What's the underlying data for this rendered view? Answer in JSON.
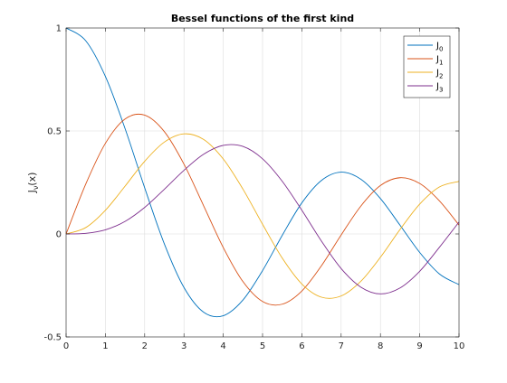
{
  "chart_data": {
    "type": "line",
    "title": "Bessel functions of the first kind",
    "xlabel": "",
    "ylabel_base": "J",
    "ylabel_sub": "ν",
    "ylabel_suffix": "(x)",
    "xlim": [
      0,
      10
    ],
    "ylim": [
      -0.5,
      1
    ],
    "xticks": [
      0,
      1,
      2,
      3,
      4,
      5,
      6,
      7,
      8,
      9,
      10
    ],
    "xtick_labels": [
      "0",
      "1",
      "2",
      "3",
      "4",
      "5",
      "6",
      "7",
      "8",
      "9",
      "10"
    ],
    "yticks": [
      -0.5,
      0,
      0.5,
      1
    ],
    "ytick_labels": [
      "-0.5",
      "0",
      "0.5",
      "1"
    ],
    "grid": true,
    "legend_position": "top-right",
    "x": [
      0,
      0.5,
      1,
      1.5,
      2,
      2.5,
      3,
      3.5,
      4,
      4.5,
      5,
      5.5,
      6,
      6.5,
      7,
      7.5,
      8,
      8.5,
      9,
      9.5,
      10
    ],
    "series": [
      {
        "name": "J0",
        "name_base": "J",
        "name_sub": "0",
        "color": "#0072BD",
        "values": [
          1.0,
          0.938,
          0.765,
          0.512,
          0.224,
          -0.048,
          -0.26,
          -0.38,
          -0.397,
          -0.321,
          -0.178,
          -0.007,
          0.151,
          0.26,
          0.3,
          0.266,
          0.172,
          0.042,
          -0.09,
          -0.194,
          -0.246
        ]
      },
      {
        "name": "J1",
        "name_base": "J",
        "name_sub": "1",
        "color": "#D95319",
        "values": [
          0.0,
          0.242,
          0.44,
          0.558,
          0.577,
          0.497,
          0.339,
          0.137,
          -0.066,
          -0.231,
          -0.328,
          -0.341,
          -0.277,
          -0.154,
          -0.005,
          0.135,
          0.235,
          0.273,
          0.245,
          0.161,
          0.043
        ]
      },
      {
        "name": "J2",
        "name_base": "J",
        "name_sub": "2",
        "color": "#EDB120",
        "values": [
          0.0,
          0.031,
          0.115,
          0.232,
          0.353,
          0.446,
          0.486,
          0.459,
          0.364,
          0.218,
          0.047,
          -0.117,
          -0.243,
          -0.307,
          -0.301,
          -0.23,
          -0.113,
          0.022,
          0.145,
          0.228,
          0.255
        ]
      },
      {
        "name": "J3",
        "name_base": "J",
        "name_sub": "3",
        "color": "#7E2F8E",
        "values": [
          0.0,
          0.003,
          0.02,
          0.061,
          0.129,
          0.217,
          0.309,
          0.387,
          0.43,
          0.425,
          0.365,
          0.256,
          0.115,
          -0.035,
          -0.168,
          -0.258,
          -0.291,
          -0.262,
          -0.181,
          -0.065,
          0.058
        ]
      }
    ]
  }
}
